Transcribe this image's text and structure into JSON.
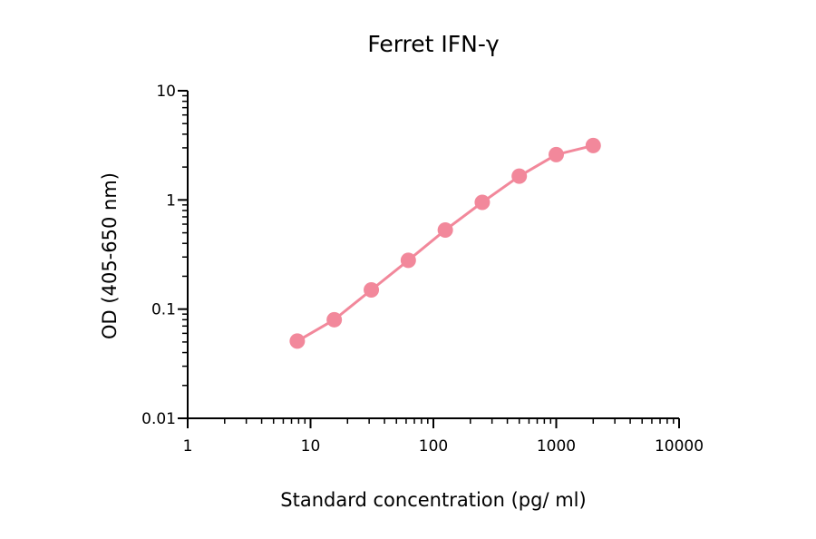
{
  "chart_data": {
    "type": "line",
    "title": "Ferret IFN-γ",
    "xlabel": "Standard concentration (pg/ ml)",
    "ylabel": "OD (405-650 nm)",
    "xscale": "log",
    "yscale": "log",
    "xlim": [
      1,
      10000
    ],
    "ylim": [
      0.01,
      10
    ],
    "xticks": [
      1,
      10,
      100,
      1000,
      10000
    ],
    "xtick_labels": [
      "1",
      "10",
      "100",
      "1000",
      "10000"
    ],
    "yticks": [
      0.01,
      0.1,
      1,
      10
    ],
    "ytick_labels": [
      "0.01",
      "0.1",
      "1",
      "10"
    ],
    "grid": false,
    "series": [
      {
        "color": "#f2889b",
        "markers": true,
        "x": [
          7.8,
          15.6,
          31.25,
          62.5,
          125,
          250,
          500,
          1000,
          2000
        ],
        "y": [
          0.051,
          0.08,
          0.15,
          0.28,
          0.53,
          0.95,
          1.65,
          2.6,
          3.15
        ]
      }
    ]
  }
}
